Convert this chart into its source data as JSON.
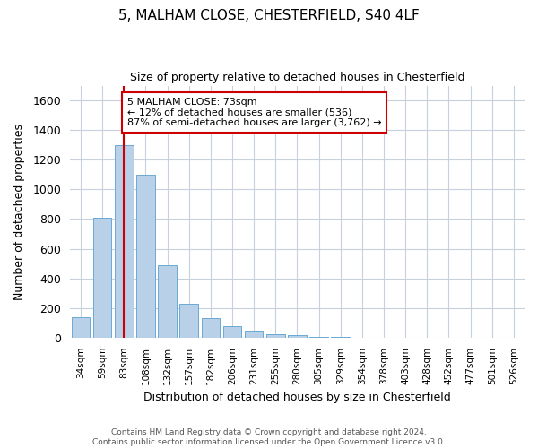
{
  "title_line1": "5, MALHAM CLOSE, CHESTERFIELD, S40 4LF",
  "title_line2": "Size of property relative to detached houses in Chesterfield",
  "xlabel": "Distribution of detached houses by size in Chesterfield",
  "ylabel": "Number of detached properties",
  "categories": [
    "34sqm",
    "59sqm",
    "83sqm",
    "108sqm",
    "132sqm",
    "157sqm",
    "182sqm",
    "206sqm",
    "231sqm",
    "255sqm",
    "280sqm",
    "305sqm",
    "329sqm",
    "354sqm",
    "378sqm",
    "403sqm",
    "428sqm",
    "452sqm",
    "477sqm",
    "501sqm",
    "526sqm"
  ],
  "bar_values": [
    140,
    810,
    1300,
    1100,
    490,
    230,
    130,
    75,
    50,
    25,
    20,
    5,
    2,
    0,
    0,
    0,
    0,
    0,
    0,
    0,
    0
  ],
  "bar_color": "#b8d0e8",
  "bar_edge_color": "#6aaad4",
  "grid_color": "#c8d0dc",
  "vline_x_index": 2,
  "vline_color": "#cc0000",
  "annotation_line1": "5 MALHAM CLOSE: 73sqm",
  "annotation_line2": "← 12% of detached houses are smaller (536)",
  "annotation_line3": "87% of semi-detached houses are larger (3,762) →",
  "annotation_box_color": "#cc0000",
  "ylim": [
    0,
    1700
  ],
  "yticks": [
    0,
    200,
    400,
    600,
    800,
    1000,
    1200,
    1400,
    1600
  ],
  "footer_line1": "Contains HM Land Registry data © Crown copyright and database right 2024.",
  "footer_line2": "Contains public sector information licensed under the Open Government Licence v3.0.",
  "bg_color": "#ffffff",
  "fig_bg_color": "#ffffff"
}
